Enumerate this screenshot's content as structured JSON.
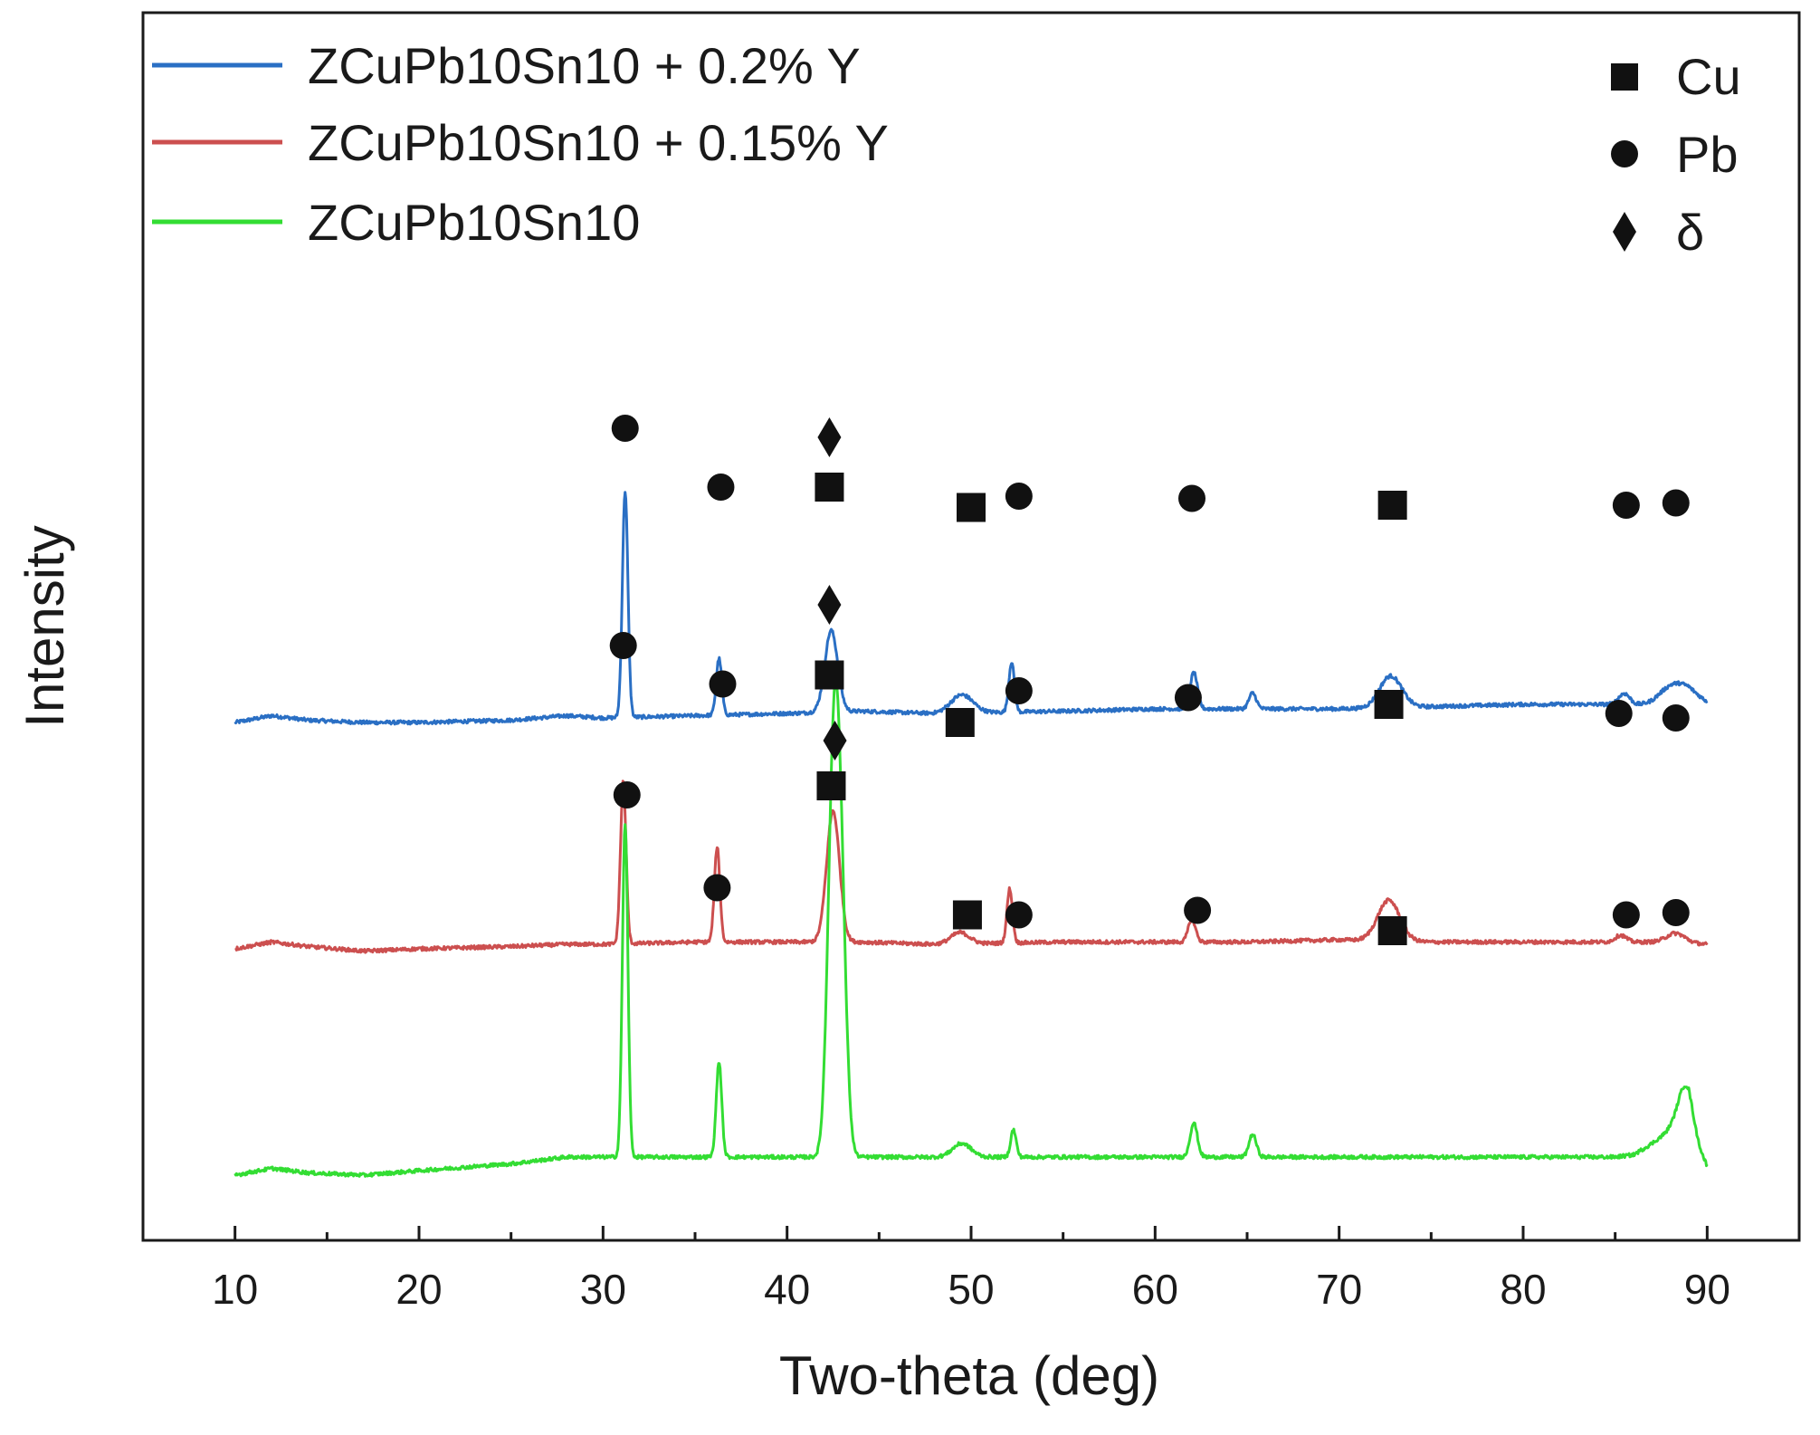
{
  "chart_data": {
    "type": "line",
    "xlabel": "Two-theta (deg)",
    "ylabel": "Intensity",
    "xlim": [
      5,
      95
    ],
    "xticks": [
      10,
      20,
      30,
      40,
      50,
      60,
      70,
      80,
      90
    ],
    "xticks_minor": [
      15,
      25,
      35,
      45,
      55,
      65,
      75,
      85
    ],
    "y_tick_labels": false,
    "legend": [
      {
        "label": "ZCuPb10Sn10 + 0.2% Y",
        "color": "#2a6fc4"
      },
      {
        "label": "ZCuPb10Sn10 + 0.15% Y",
        "color": "#cc4f4f"
      },
      {
        "label": "ZCuPb10Sn10",
        "color": "#33dd33"
      }
    ],
    "phase_legend": [
      {
        "symbol": "square",
        "label": "Cu"
      },
      {
        "symbol": "circle",
        "label": "Pb"
      },
      {
        "symbol": "diamond",
        "label": "δ"
      }
    ],
    "y_unit_note": "intensity in relative units; each series plotted with its own vertical offset",
    "series": [
      {
        "name": "ZCuPb10Sn10 + 0.2% Y",
        "color": "#2a6fc4",
        "offset": 200,
        "baseline": [
          [
            10,
            0
          ],
          [
            12,
            3
          ],
          [
            14,
            1
          ],
          [
            17,
            0
          ],
          [
            20,
            0
          ],
          [
            25,
            1
          ],
          [
            28,
            3
          ],
          [
            30,
            2
          ],
          [
            35,
            3
          ],
          [
            40,
            4
          ],
          [
            44,
            5
          ],
          [
            48,
            4
          ],
          [
            55,
            5
          ],
          [
            60,
            6
          ],
          [
            65,
            6
          ],
          [
            70,
            6
          ],
          [
            75,
            7
          ],
          [
            80,
            8
          ],
          [
            85,
            8
          ],
          [
            87,
            7
          ],
          [
            88,
            9
          ],
          [
            89,
            10
          ],
          [
            90,
            8
          ]
        ],
        "peaks": [
          {
            "x": 31.2,
            "h": 100,
            "w": 0.15
          },
          {
            "x": 36.3,
            "h": 25,
            "w": 0.15
          },
          {
            "x": 42.4,
            "h": 36,
            "w": 0.35
          },
          {
            "x": 49.5,
            "h": 8,
            "w": 0.6
          },
          {
            "x": 52.2,
            "h": 22,
            "w": 0.15
          },
          {
            "x": 62.1,
            "h": 16,
            "w": 0.2
          },
          {
            "x": 65.3,
            "h": 7,
            "w": 0.2
          },
          {
            "x": 72.8,
            "h": 14,
            "w": 0.6
          },
          {
            "x": 85.5,
            "h": 5,
            "w": 0.3
          },
          {
            "x": 88.3,
            "h": 8,
            "w": 0.9
          }
        ]
      },
      {
        "name": "ZCuPb10Sn10 + 0.15% Y",
        "color": "#cc4f4f",
        "offset": 100,
        "baseline": [
          [
            10,
            0
          ],
          [
            12,
            3
          ],
          [
            14,
            1
          ],
          [
            17,
            -1
          ],
          [
            20,
            0
          ],
          [
            25,
            1
          ],
          [
            28,
            2
          ],
          [
            30,
            2
          ],
          [
            35,
            3
          ],
          [
            40,
            3
          ],
          [
            44,
            3
          ],
          [
            48,
            2
          ],
          [
            55,
            3
          ],
          [
            60,
            3
          ],
          [
            65,
            3
          ],
          [
            70,
            4
          ],
          [
            75,
            3
          ],
          [
            80,
            3
          ],
          [
            85,
            3
          ],
          [
            88,
            3
          ],
          [
            90,
            2
          ]
        ],
        "peaks": [
          {
            "x": 31.1,
            "h": 72,
            "w": 0.15
          },
          {
            "x": 36.2,
            "h": 42,
            "w": 0.15
          },
          {
            "x": 42.5,
            "h": 58,
            "w": 0.35
          },
          {
            "x": 49.4,
            "h": 5,
            "w": 0.5
          },
          {
            "x": 52.1,
            "h": 24,
            "w": 0.15
          },
          {
            "x": 62.0,
            "h": 10,
            "w": 0.2
          },
          {
            "x": 72.7,
            "h": 18,
            "w": 0.6
          },
          {
            "x": 85.3,
            "h": 3,
            "w": 0.3
          },
          {
            "x": 88.3,
            "h": 4,
            "w": 0.5
          }
        ]
      },
      {
        "name": "ZCuPb10Sn10",
        "color": "#33dd33",
        "offset": 0,
        "baseline": [
          [
            10,
            0
          ],
          [
            12,
            3
          ],
          [
            14,
            1
          ],
          [
            17,
            0
          ],
          [
            20,
            2
          ],
          [
            25,
            5
          ],
          [
            28,
            8
          ],
          [
            30,
            8
          ],
          [
            35,
            8
          ],
          [
            40,
            8
          ],
          [
            44,
            8
          ],
          [
            48,
            8
          ],
          [
            55,
            8
          ],
          [
            60,
            8
          ],
          [
            65,
            8
          ],
          [
            70,
            8
          ],
          [
            75,
            8
          ],
          [
            80,
            8
          ],
          [
            85,
            8
          ],
          [
            86,
            9
          ],
          [
            87,
            14
          ],
          [
            88,
            20
          ],
          [
            89,
            22
          ],
          [
            89.5,
            12
          ],
          [
            90,
            4
          ]
        ],
        "peaks": [
          {
            "x": 31.2,
            "h": 147,
            "w": 0.15
          },
          {
            "x": 36.3,
            "h": 42,
            "w": 0.15
          },
          {
            "x": 42.5,
            "h": 150,
            "w": 0.3
          },
          {
            "x": 42.9,
            "h": 110,
            "w": 0.3
          },
          {
            "x": 49.5,
            "h": 6,
            "w": 0.5
          },
          {
            "x": 52.3,
            "h": 12,
            "w": 0.15
          },
          {
            "x": 62.1,
            "h": 15,
            "w": 0.2
          },
          {
            "x": 65.3,
            "h": 10,
            "w": 0.2
          },
          {
            "x": 88.8,
            "h": 18,
            "w": 0.4
          }
        ]
      }
    ],
    "phase_markers": [
      {
        "series": 0,
        "symbol": "circle",
        "x": 31.2,
        "y": 330
      },
      {
        "series": 0,
        "symbol": "circle",
        "x": 36.4,
        "y": 304
      },
      {
        "series": 0,
        "symbol": "square",
        "x": 42.3,
        "y": 304
      },
      {
        "series": 0,
        "symbol": "diamond",
        "x": 42.3,
        "y": 326
      },
      {
        "series": 0,
        "symbol": "square",
        "x": 50.0,
        "y": 295
      },
      {
        "series": 0,
        "symbol": "circle",
        "x": 52.6,
        "y": 300
      },
      {
        "series": 0,
        "symbol": "circle",
        "x": 62.0,
        "y": 299
      },
      {
        "series": 0,
        "symbol": "square",
        "x": 72.9,
        "y": 296
      },
      {
        "series": 0,
        "symbol": "circle",
        "x": 85.6,
        "y": 296
      },
      {
        "series": 0,
        "symbol": "circle",
        "x": 88.3,
        "y": 297
      },
      {
        "series": 1,
        "symbol": "circle",
        "x": 31.1,
        "y": 234
      },
      {
        "series": 1,
        "symbol": "circle",
        "x": 36.5,
        "y": 217
      },
      {
        "series": 1,
        "symbol": "square",
        "x": 42.3,
        "y": 221
      },
      {
        "series": 1,
        "symbol": "diamond",
        "x": 42.3,
        "y": 252
      },
      {
        "series": 1,
        "symbol": "square",
        "x": 49.4,
        "y": 200
      },
      {
        "series": 1,
        "symbol": "circle",
        "x": 52.6,
        "y": 214
      },
      {
        "series": 1,
        "symbol": "circle",
        "x": 61.8,
        "y": 211
      },
      {
        "series": 1,
        "symbol": "square",
        "x": 72.7,
        "y": 208
      },
      {
        "series": 1,
        "symbol": "circle",
        "x": 85.2,
        "y": 204
      },
      {
        "series": 1,
        "symbol": "circle",
        "x": 88.3,
        "y": 202
      },
      {
        "series": 2,
        "symbol": "circle",
        "x": 31.3,
        "y": 168
      },
      {
        "series": 2,
        "symbol": "circle",
        "x": 36.2,
        "y": 127
      },
      {
        "series": 2,
        "symbol": "square",
        "x": 42.4,
        "y": 172
      },
      {
        "series": 2,
        "symbol": "diamond",
        "x": 42.6,
        "y": 192
      },
      {
        "series": 2,
        "symbol": "square",
        "x": 49.8,
        "y": 115
      },
      {
        "series": 2,
        "symbol": "circle",
        "x": 52.6,
        "y": 115
      },
      {
        "series": 2,
        "symbol": "circle",
        "x": 62.3,
        "y": 117
      },
      {
        "series": 2,
        "symbol": "square",
        "x": 72.9,
        "y": 108
      },
      {
        "series": 2,
        "symbol": "circle",
        "x": 85.6,
        "y": 115
      },
      {
        "series": 2,
        "symbol": "circle",
        "x": 88.3,
        "y": 116
      }
    ]
  }
}
